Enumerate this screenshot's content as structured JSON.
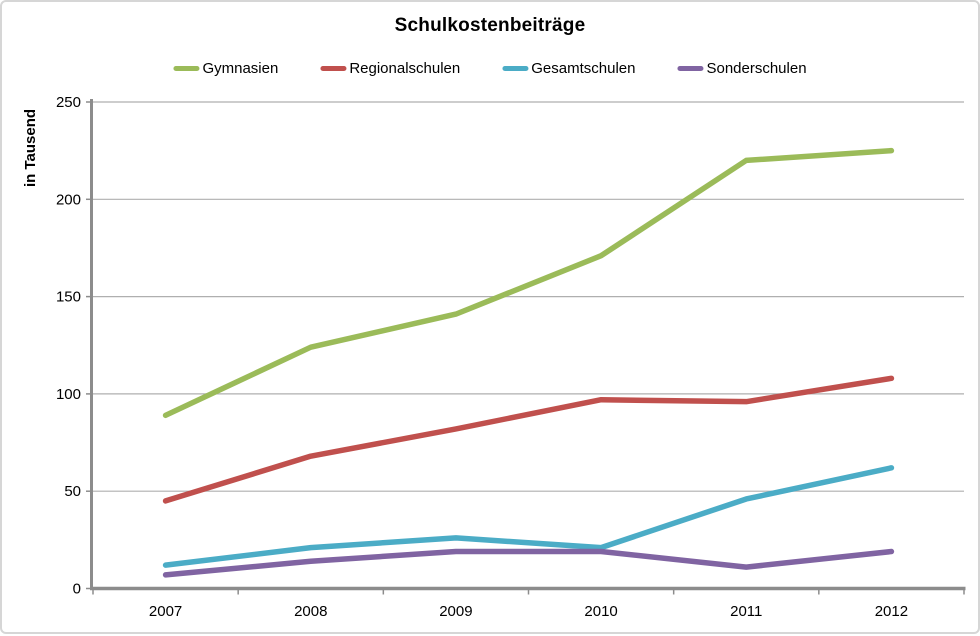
{
  "chart_data": {
    "type": "line",
    "title": "Schulkostenbeiträge",
    "ylabel": "in Tausend",
    "xlabel": "",
    "ylim": [
      0,
      250
    ],
    "yticks": [
      0,
      50,
      100,
      150,
      200,
      250
    ],
    "grid": true,
    "legend_position": "top",
    "categories": [
      "2007",
      "2008",
      "2009",
      "2010",
      "2011",
      "2012"
    ],
    "series": [
      {
        "name": "Gymnasien",
        "color": "#9BBB59",
        "values": [
          89,
          124,
          141,
          171,
          220,
          225
        ]
      },
      {
        "name": "Regionalschulen",
        "color": "#C0504D",
        "values": [
          45,
          68,
          82,
          97,
          96,
          108
        ]
      },
      {
        "name": "Gesamtschulen",
        "color": "#4BACC6",
        "values": [
          12,
          21,
          26,
          21,
          46,
          62
        ]
      },
      {
        "name": "Sonderschulen",
        "color": "#8064A2",
        "values": [
          7,
          14,
          19,
          19,
          11,
          19
        ]
      }
    ],
    "axis_colors": {
      "axis": "#8C8C8C",
      "gridline": "#AFAFAF"
    }
  }
}
